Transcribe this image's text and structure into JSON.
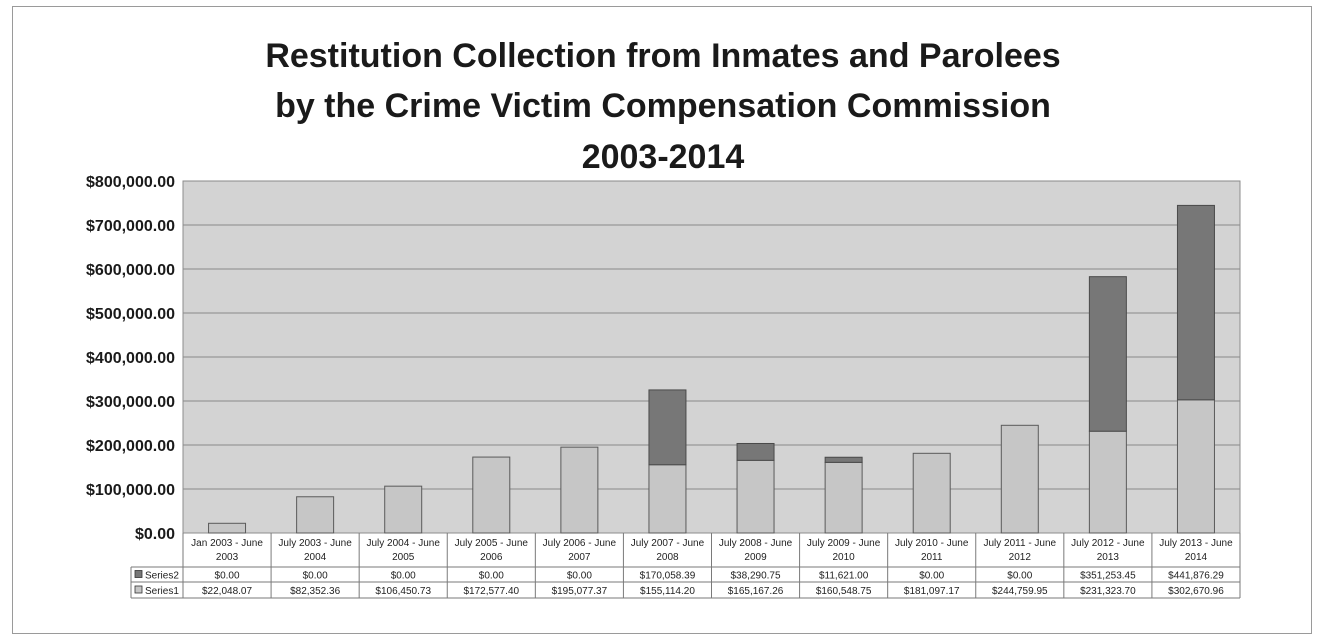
{
  "chart_data": {
    "type": "bar",
    "stacked": true,
    "title": [
      "Restitution Collection from Inmates and Parolees",
      "by the Crime Victim Compensation Commission",
      "2003-2014"
    ],
    "categories": [
      [
        "Jan 2003 - June",
        "2003"
      ],
      [
        "July 2003 - June",
        "2004"
      ],
      [
        "July 2004 - June",
        "2005"
      ],
      [
        "July 2005 - June",
        "2006"
      ],
      [
        "July 2006 - June",
        "2007"
      ],
      [
        "July 2007 - June",
        "2008"
      ],
      [
        "July 2008 - June",
        "2009"
      ],
      [
        "July 2009 - June",
        "2010"
      ],
      [
        "July 2010 - June",
        "2011"
      ],
      [
        "July 2011 - June",
        "2012"
      ],
      [
        "July 2012 - June",
        "2013"
      ],
      [
        "July 2013 - June",
        "2014"
      ]
    ],
    "series": [
      {
        "name": "Series2",
        "color": "#777777",
        "values": [
          0,
          0,
          0,
          0,
          0,
          170058.39,
          38290.75,
          11621.0,
          0,
          0,
          351253.45,
          441876.29
        ],
        "labels": [
          "$0.00",
          "$0.00",
          "$0.00",
          "$0.00",
          "$0.00",
          "$170,058.39",
          "$38,290.75",
          "$11,621.00",
          "$0.00",
          "$0.00",
          "$351,253.45",
          "$441,876.29"
        ]
      },
      {
        "name": "Series1",
        "color": "#c6c6c6",
        "values": [
          22048.07,
          82352.36,
          106450.73,
          172577.4,
          195077.37,
          155114.2,
          165167.26,
          160548.75,
          181097.17,
          244759.95,
          231323.7,
          302670.96
        ],
        "labels": [
          "$22,048.07",
          "$82,352.36",
          "$106,450.73",
          "$172,577.40",
          "$195,077.37",
          "$155,114.20",
          "$165,167.26",
          "$160,548.75",
          "$181,097.17",
          "$244,759.95",
          "$231,323.70",
          "$302,670.96"
        ]
      }
    ],
    "yticks": [
      "$0.00",
      "$100,000.00",
      "$200,000.00",
      "$300,000.00",
      "$400,000.00",
      "$500,000.00",
      "$600,000.00",
      "$700,000.00",
      "$800,000.00"
    ],
    "ylim": [
      0,
      800000
    ],
    "grid": true,
    "legend": "data-table"
  }
}
